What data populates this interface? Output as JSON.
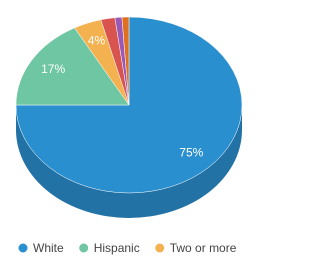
{
  "chart_data": {
    "type": "pie",
    "categories": [
      "White",
      "Hispanic",
      "Two or more",
      null,
      null,
      null
    ],
    "values": [
      75,
      17,
      4,
      2,
      1,
      1
    ],
    "value_labels": [
      "75%",
      "17%",
      "4%",
      null,
      null,
      null
    ],
    "colors": [
      "#2a8fcf",
      "#6fc6a2",
      "#f4b14f",
      "#d9534f",
      "#9b59b6",
      "#e0701f"
    ],
    "legend": "bottom"
  }
}
